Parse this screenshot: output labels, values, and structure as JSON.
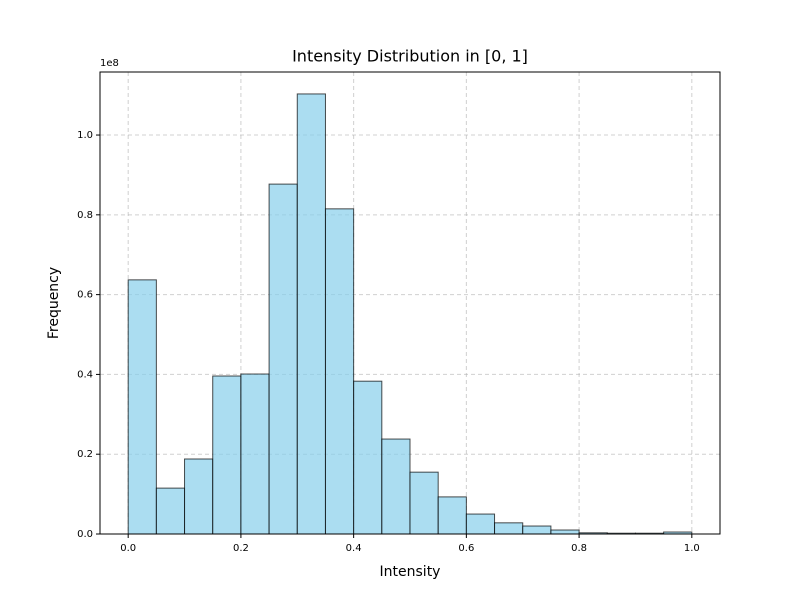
{
  "chart_data": {
    "type": "histogram",
    "title": "Intensity Distribution in [0, 1]",
    "xlabel": "Intensity",
    "ylabel": "Frequency",
    "y_offset_label": "1e8",
    "bins": [
      0,
      0.05,
      0.1,
      0.15,
      0.2,
      0.25,
      0.3,
      0.35,
      0.4,
      0.45,
      0.5,
      0.55,
      0.6,
      0.65,
      0.7,
      0.75,
      0.8,
      0.85,
      0.9,
      0.95,
      1.0
    ],
    "counts": [
      63700000,
      11500000,
      18800000,
      39600000,
      40100000,
      87700000,
      110300000,
      81500000,
      38300000,
      23800000,
      15500000,
      9300000,
      5000000,
      2800000,
      2000000,
      1000000,
      300000,
      200000,
      200000,
      500000
    ],
    "color": "#87ceeb",
    "edgecolor": "#000000",
    "alpha": 0.7,
    "xlim": [
      -0.05,
      1.05
    ],
    "xticks": [
      {
        "value": 0,
        "label": "0.0"
      },
      0.2,
      0.4,
      0.6,
      0.8,
      {
        "value": 1,
        "label": "1.0"
      }
    ],
    "ylim": [
      0,
      115800000
    ],
    "yticks": [
      {
        "value": 0,
        "label": "0.0"
      },
      {
        "value": 20000000,
        "label": "0.2"
      },
      {
        "value": 40000000,
        "label": "0.4"
      },
      {
        "value": 60000000,
        "label": "0.6"
      },
      {
        "value": 80000000,
        "label": "0.8"
      },
      {
        "value": 100000000,
        "label": "1.0"
      }
    ],
    "grid": true
  }
}
